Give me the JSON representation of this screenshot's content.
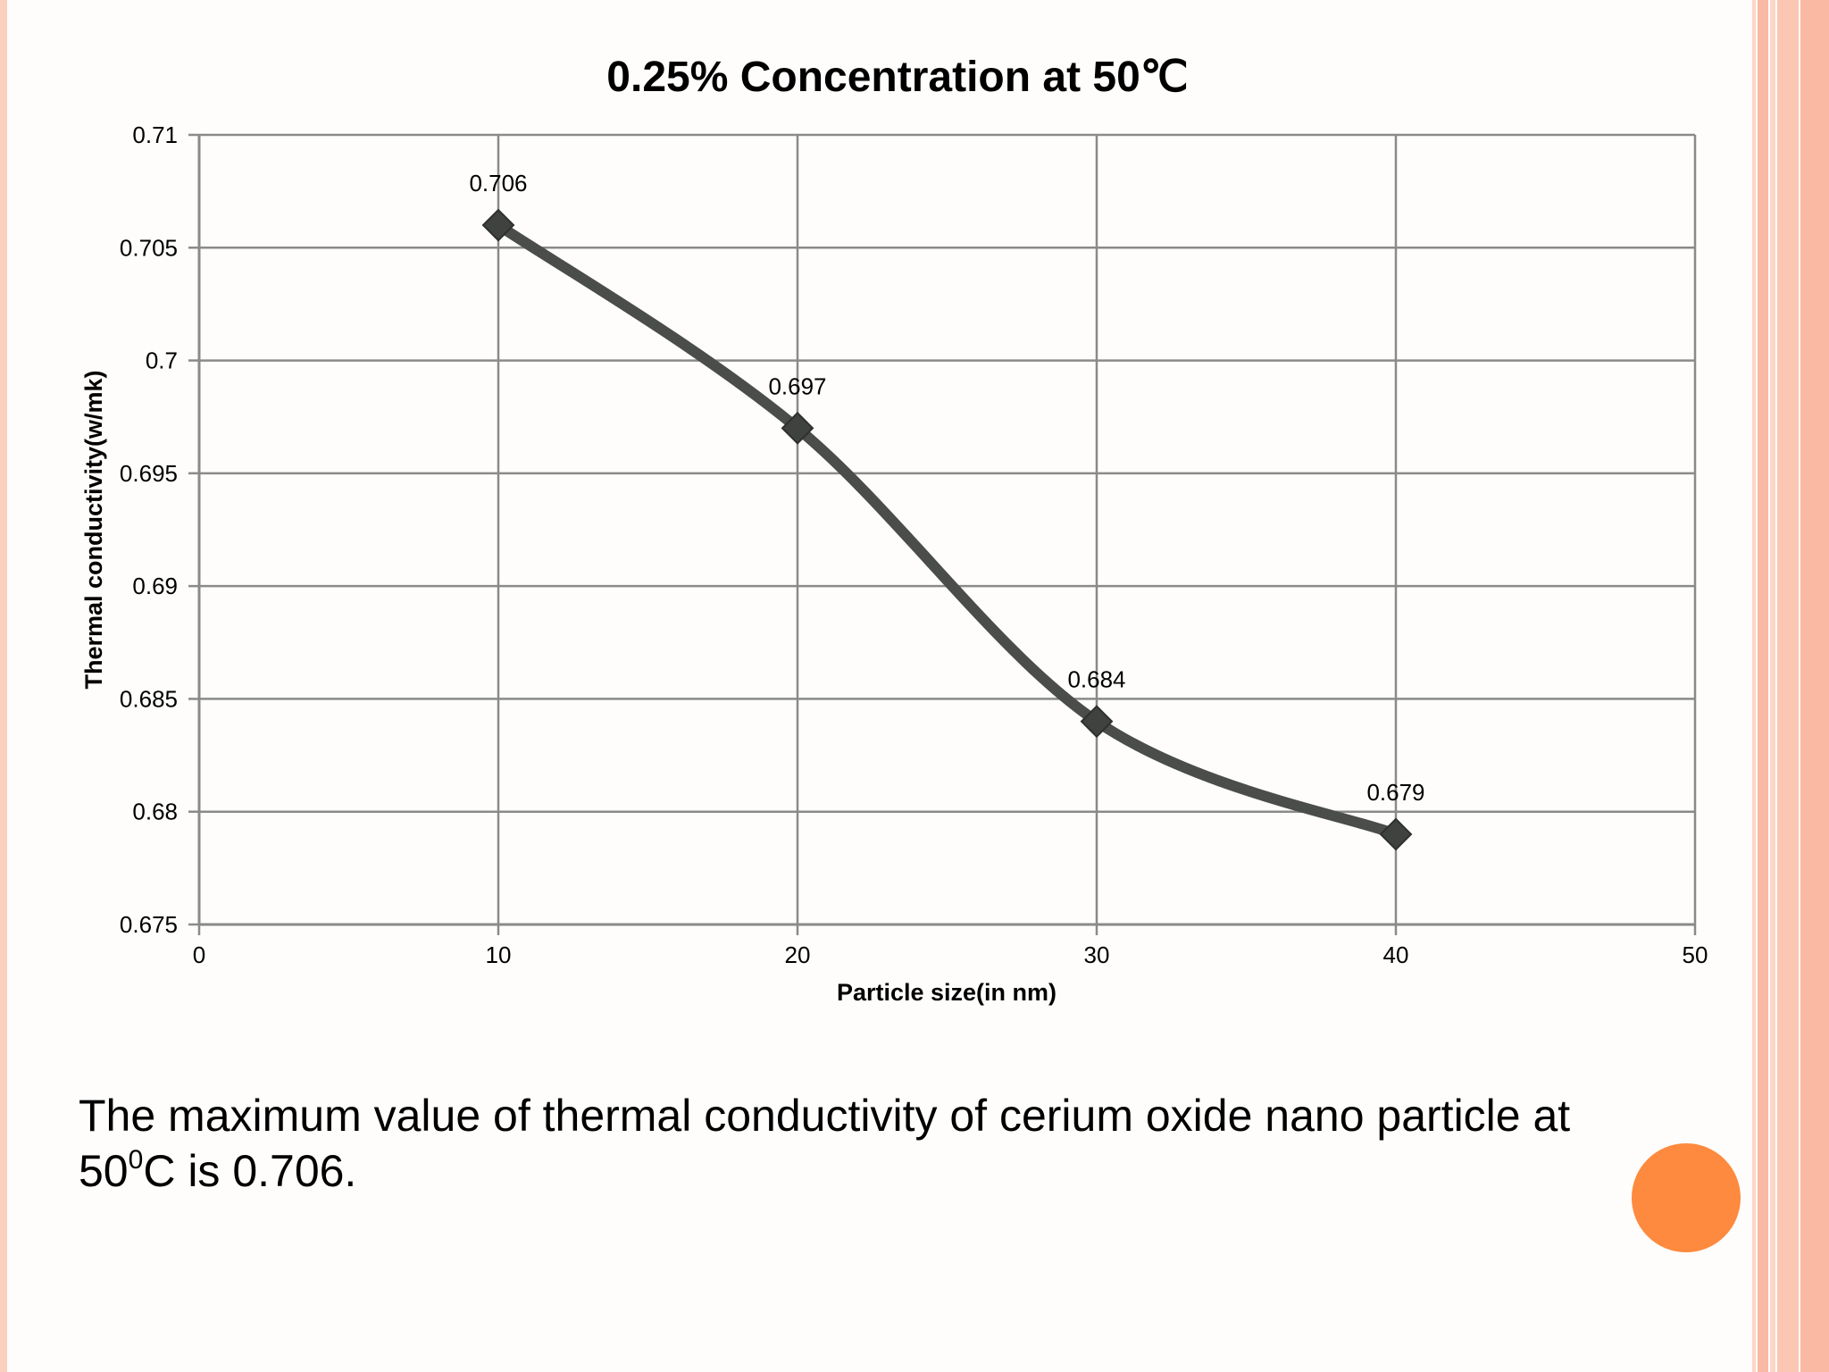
{
  "colors": {
    "background": "#fefdfb",
    "stripe_light": "#fcd6c6",
    "stripe_mid": "#f9b9a3",
    "circle": "#fd8a3e",
    "series_line": "#4a4d4a",
    "grid": "#8a8a8a"
  },
  "chart_data": {
    "type": "line",
    "title": "0.25% Concentration at 50℃",
    "xlabel": "Particle size(in nm)",
    "ylabel": "Thermal conductivity(w/mk)",
    "xlim": [
      0,
      50
    ],
    "ylim": [
      0.675,
      0.71
    ],
    "x_ticks": [
      "0",
      "10",
      "20",
      "30",
      "40",
      "50"
    ],
    "y_ticks": [
      "0.675",
      "0.68",
      "0.685",
      "0.69",
      "0.695",
      "0.7",
      "0.705",
      "0.71"
    ],
    "grid": true,
    "smooth": true,
    "marker": "diamond",
    "series": [
      {
        "x": [
          10,
          20,
          30,
          40
        ],
        "values": [
          0.706,
          0.697,
          0.684,
          0.679
        ],
        "data_labels": [
          "0.706",
          "0.697",
          "0.684",
          "0.679"
        ]
      }
    ]
  },
  "caption": {
    "line1": "The maximum value of thermal conductivity of cerium oxide nano particle at",
    "line2_prefix": "50",
    "line2_sup": "0",
    "line2_suffix": "C is 0.706."
  }
}
